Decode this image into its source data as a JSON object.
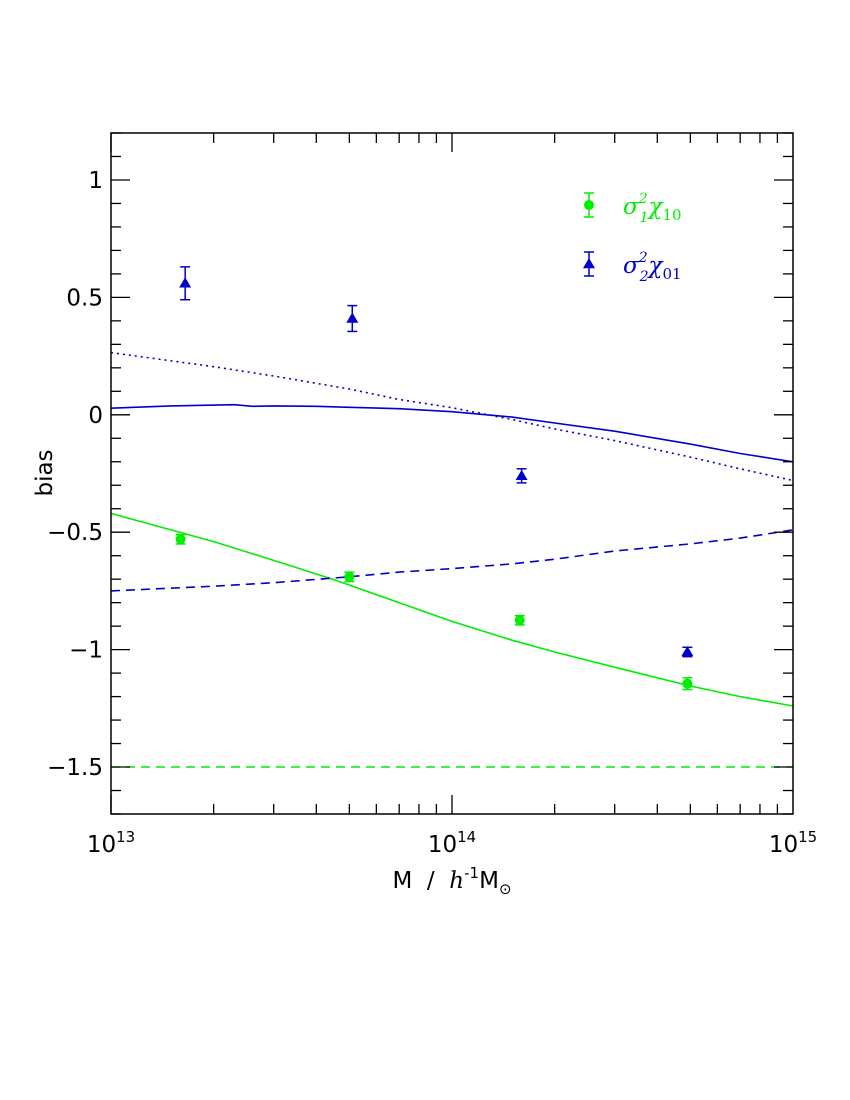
{
  "chart_data": {
    "type": "scatter",
    "xscale": "log",
    "xlim": [
      10000000000000.0,
      1000000000000000.0
    ],
    "ylim": [
      -1.7,
      1.2
    ],
    "xlabel": {
      "prefix": "M  /  ",
      "h": "h",
      "exp": "-1",
      "m": "M",
      "sub": "⊙"
    },
    "ylabel": "bias",
    "xticks_major": [
      {
        "value": 10000000000000.0,
        "base": "10",
        "exp": "13"
      },
      {
        "value": 100000000000000.0,
        "base": "10",
        "exp": "14"
      },
      {
        "value": 1000000000000000.0,
        "base": "10",
        "exp": "15"
      }
    ],
    "yticks_major": [
      {
        "value": 1,
        "label": "1"
      },
      {
        "value": 0.5,
        "label": "0.5"
      },
      {
        "value": 0,
        "label": "0"
      },
      {
        "value": -0.5,
        "label": "−0.5"
      },
      {
        "value": -1,
        "label": "−1"
      },
      {
        "value": -1.5,
        "label": "−1.5"
      }
    ],
    "legend": [
      {
        "sym": "σ",
        "sup": "2",
        "sub": "1",
        "chi": "χ",
        "chisub": "10",
        "color": "#00ee00",
        "marker": "circle"
      },
      {
        "sym": "σ",
        "sup": "2",
        "sub": "2",
        "chi": "χ",
        "chisub": "01",
        "color": "#0000cc",
        "marker": "triangle"
      }
    ],
    "series": [
      {
        "marker": "circle",
        "color": "#00ee00",
        "points": [
          {
            "x": 16000000000000.0,
            "y": -0.53,
            "err": 0.02
          },
          {
            "x": 50000000000000.0,
            "y": -0.69,
            "err": 0.02
          },
          {
            "x": 158000000000000.0,
            "y": -0.875,
            "err": 0.02
          },
          {
            "x": 490000000000000.0,
            "y": -1.145,
            "err": 0.025
          }
        ]
      },
      {
        "marker": "triangle",
        "color": "#0000cc",
        "points": [
          {
            "x": 16500000000000.0,
            "y": 0.56,
            "err": 0.07
          },
          {
            "x": 51000000000000.0,
            "y": 0.41,
            "err": 0.055
          },
          {
            "x": 160000000000000.0,
            "y": -0.26,
            "err": 0.03
          },
          {
            "x": 490000000000000.0,
            "y": -1.01,
            "err": 0.02
          }
        ]
      }
    ],
    "curves": [
      {
        "color": "#00ee00",
        "style": "solid",
        "x": [
          10000000000000.0,
          20000000000000.0,
          30000000000000.0,
          44700000000000.0,
          70000000000000.0,
          100000000000000.0,
          150000000000000.0,
          200000000000000.0,
          300000000000000.0,
          500000000000000.0,
          700000000000000.0,
          1000000000000000.0
        ],
        "y": [
          -0.42,
          -0.54,
          -0.62,
          -0.7,
          -0.8,
          -0.88,
          -0.96,
          -1.01,
          -1.075,
          -1.155,
          -1.2,
          -1.24
        ]
      },
      {
        "color": "#00ee00",
        "style": "dashed",
        "x": [
          10000000000000.0,
          1000000000000000.0
        ],
        "y": [
          -1.5,
          -1.5
        ]
      },
      {
        "color": "#0000cc",
        "style": "solid",
        "x": [
          10000000000000.0,
          15000000000000.0,
          23000000000000.0,
          26000000000000.0,
          30000000000000.0,
          40000000000000.0,
          50000000000000.0,
          70000000000000.0,
          100000000000000.0,
          150000000000000.0,
          200000000000000.0,
          300000000000000.0,
          500000000000000.0,
          700000000000000.0,
          1000000000000000.0
        ],
        "y": [
          0.028,
          0.038,
          0.043,
          0.036,
          0.038,
          0.036,
          0.032,
          0.026,
          0.013,
          -0.01,
          -0.035,
          -0.07,
          -0.125,
          -0.165,
          -0.2
        ]
      },
      {
        "color": "#0000cc",
        "style": "dotted",
        "x": [
          10000000000000.0,
          20000000000000.0,
          30000000000000.0,
          50000000000000.0,
          70000000000000.0,
          100000000000000.0,
          150000000000000.0,
          200000000000000.0,
          300000000000000.0,
          500000000000000.0,
          700000000000000.0,
          1000000000000000.0
        ],
        "y": [
          0.265,
          0.205,
          0.165,
          0.11,
          0.065,
          0.03,
          -0.02,
          -0.06,
          -0.11,
          -0.18,
          -0.23,
          -0.28
        ]
      },
      {
        "color": "#0000cc",
        "style": "dashed",
        "x": [
          10000000000000.0,
          20000000000000.0,
          30000000000000.0,
          50000000000000.0,
          70000000000000.0,
          100000000000000.0,
          150000000000000.0,
          200000000000000.0,
          300000000000000.0,
          500000000000000.0,
          700000000000000.0,
          1000000000000000.0
        ],
        "y": [
          -0.75,
          -0.73,
          -0.715,
          -0.69,
          -0.67,
          -0.655,
          -0.635,
          -0.615,
          -0.58,
          -0.55,
          -0.525,
          -0.49
        ]
      }
    ]
  }
}
